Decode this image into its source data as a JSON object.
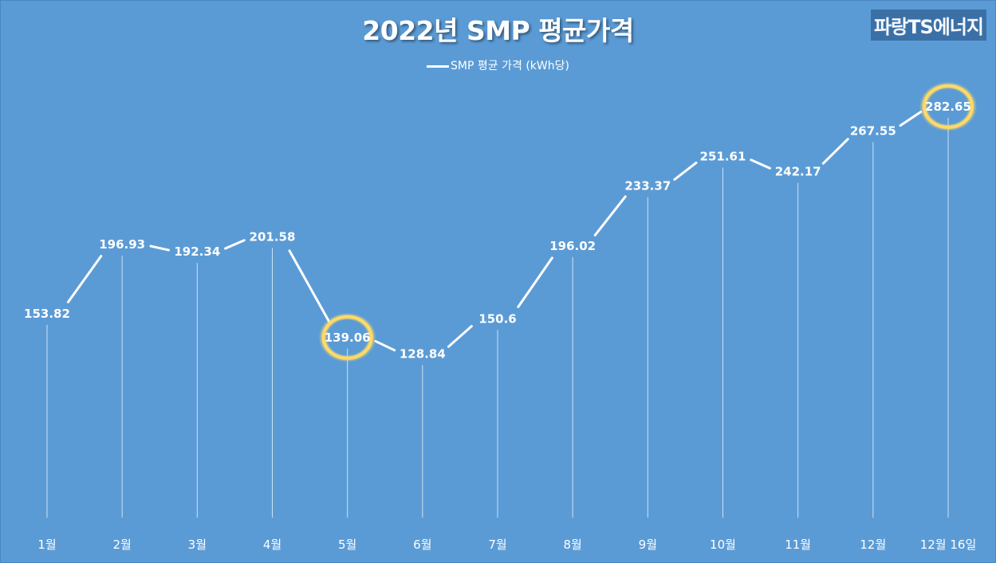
{
  "header": {
    "title": "2022년 SMP 평균가격",
    "brand": "파랑TS에너지"
  },
  "colors": {
    "background": "#5b9bd5",
    "line": "#ffffff",
    "highlight": "#ffd966"
  },
  "chart_data": {
    "type": "line",
    "title": "2022년 SMP 평균가격",
    "xlabel": "",
    "ylabel": "",
    "categories": [
      "1월",
      "2월",
      "3월",
      "4월",
      "5월",
      "6월",
      "7월",
      "8월",
      "9월",
      "10월",
      "11월",
      "12월",
      "12월 16일"
    ],
    "series": [
      {
        "name": "SMP 평균 가격 (kWh당)",
        "values": [
          153.82,
          196.93,
          192.34,
          201.58,
          139.06,
          128.84,
          150.6,
          196.02,
          233.37,
          251.61,
          242.17,
          267.55,
          282.65
        ],
        "labels": [
          "153.82",
          "196.93",
          "192.34",
          "201.58",
          "139.06",
          "128.84",
          "150.6",
          "196.02",
          "233.37",
          "251.61",
          "242.17",
          "267.55",
          "282.65"
        ]
      }
    ],
    "highlighted": [
      "5월",
      "12월 16일"
    ],
    "drop_lines": true,
    "grid": false,
    "legend_position": "top-center"
  }
}
